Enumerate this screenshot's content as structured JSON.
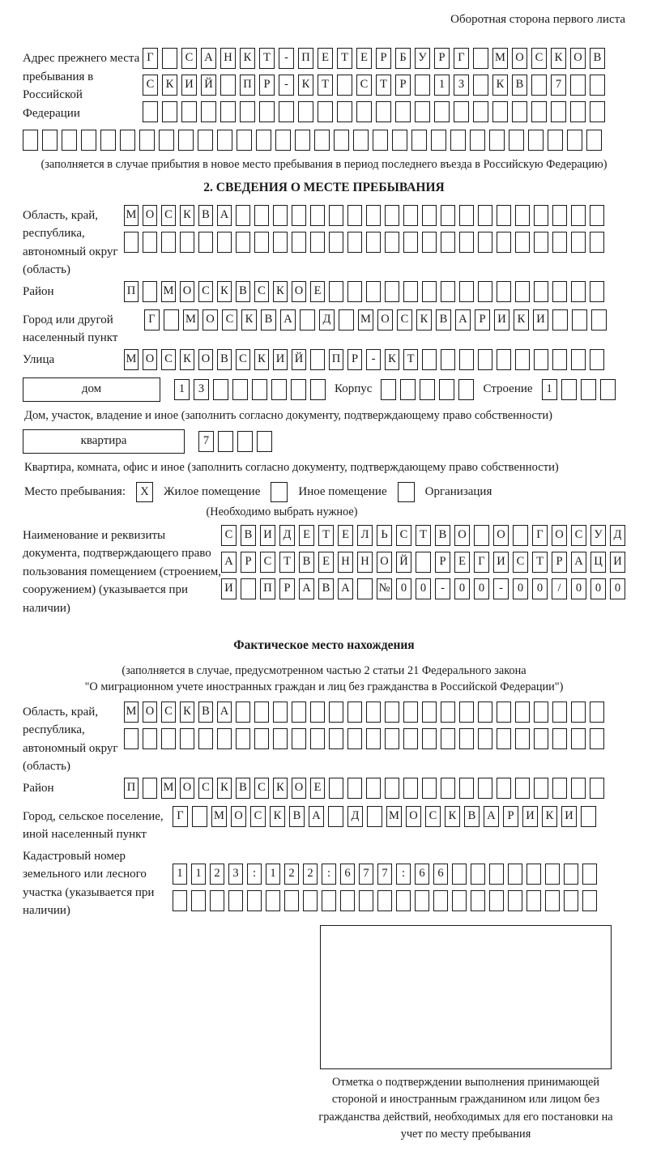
{
  "page": {
    "header_note": "Оборотная сторона первого листа"
  },
  "prev_address": {
    "label": "Адрес прежнего места пребывания в Российской Федерации",
    "rows": [
      [
        "Г",
        "",
        "С",
        "А",
        "Н",
        "К",
        "Т",
        "-",
        "П",
        "Е",
        "Т",
        "Е",
        "Р",
        "Б",
        "У",
        "Р",
        "Г",
        "",
        "М",
        "О",
        "С",
        "К",
        "О",
        "В"
      ],
      [
        "С",
        "К",
        "И",
        "Й",
        "",
        "П",
        "Р",
        "-",
        "К",
        "Т",
        "",
        "С",
        "Т",
        "Р",
        "",
        "1",
        "3",
        "",
        "К",
        "В",
        "",
        "7",
        "",
        ""
      ],
      [
        "",
        "",
        "",
        "",
        "",
        "",
        "",
        "",
        "",
        "",
        "",
        "",
        "",
        "",
        "",
        "",
        "",
        "",
        "",
        "",
        "",
        "",
        "",
        ""
      ]
    ],
    "full_row": [
      "",
      "",
      "",
      "",
      "",
      "",
      "",
      "",
      "",
      "",
      "",
      "",
      "",
      "",
      "",
      "",
      "",
      "",
      "",
      "",
      "",
      "",
      "",
      "",
      "",
      "",
      "",
      "",
      "",
      ""
    ],
    "note": "(заполняется в случае прибытия в новое место пребывания в период последнего въезда в Российскую Федерацию)"
  },
  "section2": {
    "title": "2. СВЕДЕНИЯ О МЕСТЕ ПРЕБЫВАНИЯ",
    "oblast": {
      "label": "Область, край, республика, автономный округ (область)",
      "rows": [
        [
          "М",
          "О",
          "С",
          "К",
          "В",
          "А",
          "",
          "",
          "",
          "",
          "",
          "",
          "",
          "",
          "",
          "",
          "",
          "",
          "",
          "",
          "",
          "",
          "",
          "",
          "",
          ""
        ],
        [
          "",
          "",
          "",
          "",
          "",
          "",
          "",
          "",
          "",
          "",
          "",
          "",
          "",
          "",
          "",
          "",
          "",
          "",
          "",
          "",
          "",
          "",
          "",
          "",
          "",
          ""
        ]
      ]
    },
    "raion": {
      "label": "Район",
      "row": [
        "П",
        "",
        "М",
        "О",
        "С",
        "К",
        "В",
        "С",
        "К",
        "О",
        "Е",
        "",
        "",
        "",
        "",
        "",
        "",
        "",
        "",
        "",
        "",
        "",
        "",
        "",
        "",
        ""
      ]
    },
    "gorod": {
      "label": "Город или другой населенный пункт",
      "row": [
        "Г",
        "",
        "М",
        "О",
        "С",
        "К",
        "В",
        "А",
        "",
        "Д",
        "",
        "М",
        "О",
        "С",
        "К",
        "В",
        "А",
        "Р",
        "И",
        "К",
        "И",
        "",
        "",
        ""
      ]
    },
    "ulitsa": {
      "label": "Улица",
      "row": [
        "М",
        "О",
        "С",
        "К",
        "О",
        "В",
        "С",
        "К",
        "И",
        "Й",
        "",
        "П",
        "Р",
        "-",
        "К",
        "Т",
        "",
        "",
        "",
        "",
        "",
        "",
        "",
        "",
        "",
        ""
      ]
    },
    "dom": {
      "box_label": "дом",
      "cells": [
        "1",
        "3",
        "",
        "",
        "",
        "",
        "",
        ""
      ],
      "korpus_label": "Корпус",
      "korpus_cells": [
        "",
        "",
        "",
        "",
        ""
      ],
      "stroenie_label": "Строение",
      "stroenie_cells": [
        "1",
        "",
        "",
        ""
      ],
      "note": "Дом, участок, владение и иное (заполнить согласно документу, подтверждающему право собственности)"
    },
    "kvartira": {
      "box_label": "квартира",
      "cells": [
        "7",
        "",
        "",
        ""
      ],
      "note": "Квартира, комната, офис и иное (заполнить согласно документу, подтверждающему право собственности)"
    },
    "mesto": {
      "label": "Место пребывания:",
      "options": [
        {
          "label": "Жилое помещение",
          "mark": "X"
        },
        {
          "label": "Иное помещение",
          "mark": ""
        },
        {
          "label": "Организация",
          "mark": ""
        }
      ],
      "note": "(Необходимо выбрать нужное)"
    },
    "document": {
      "label": "Наименование и реквизиты документа, подтверждающего право пользования помещением (строением, сооружением) (указывается при наличии)",
      "rows": [
        [
          "С",
          "В",
          "И",
          "Д",
          "Е",
          "Т",
          "Е",
          "Л",
          "Ь",
          "С",
          "Т",
          "В",
          "О",
          "",
          "О",
          "",
          "Г",
          "О",
          "С",
          "У",
          "Д"
        ],
        [
          "А",
          "Р",
          "С",
          "Т",
          "В",
          "Е",
          "Н",
          "Н",
          "О",
          "Й",
          "",
          "Р",
          "Е",
          "Г",
          "И",
          "С",
          "Т",
          "Р",
          "А",
          "Ц",
          "И"
        ],
        [
          "И",
          "",
          "П",
          "Р",
          "А",
          "В",
          "А",
          "",
          "№",
          "0",
          "0",
          "-",
          "0",
          "0",
          "-",
          "0",
          "0",
          "/",
          "0",
          "0",
          "0"
        ]
      ]
    }
  },
  "actual_location": {
    "title": "Фактическое место нахождения",
    "note_line1": "(заполняется в случае, предусмотренном частью 2 статьи 21 Федерального закона",
    "note_line2": "\"О миграционном учете иностранных граждан и лиц без гражданства в Российской Федерации\")",
    "oblast": {
      "label": "Область, край, республика, автономный округ (область)",
      "rows": [
        [
          "М",
          "О",
          "С",
          "К",
          "В",
          "А",
          "",
          "",
          "",
          "",
          "",
          "",
          "",
          "",
          "",
          "",
          "",
          "",
          "",
          "",
          "",
          "",
          "",
          "",
          "",
          ""
        ],
        [
          "",
          "",
          "",
          "",
          "",
          "",
          "",
          "",
          "",
          "",
          "",
          "",
          "",
          "",
          "",
          "",
          "",
          "",
          "",
          "",
          "",
          "",
          "",
          "",
          "",
          ""
        ]
      ]
    },
    "raion": {
      "label": "Район",
      "row": [
        "П",
        "",
        "М",
        "О",
        "С",
        "К",
        "В",
        "С",
        "К",
        "О",
        "Е",
        "",
        "",
        "",
        "",
        "",
        "",
        "",
        "",
        "",
        "",
        "",
        "",
        "",
        "",
        ""
      ]
    },
    "gorod": {
      "label": "Город, сельское поселение, иной населенный пункт",
      "row": [
        "Г",
        "",
        "М",
        "О",
        "С",
        "К",
        "В",
        "А",
        "",
        "Д",
        "",
        "М",
        "О",
        "С",
        "К",
        "В",
        "А",
        "Р",
        "И",
        "К",
        "И",
        ""
      ]
    },
    "kadastr": {
      "label": "Кадастровый номер земельного или лесного участка (указывается при наличии)",
      "rows": [
        [
          "1",
          "1",
          "2",
          "3",
          ":",
          "1",
          "2",
          "2",
          ":",
          "6",
          "7",
          "7",
          ":",
          "6",
          "6",
          "",
          "",
          "",
          "",
          "",
          "",
          "",
          ""
        ],
        [
          "",
          "",
          "",
          "",
          "",
          "",
          "",
          "",
          "",
          "",
          "",
          "",
          "",
          "",
          "",
          "",
          "",
          "",
          "",
          "",
          "",
          "",
          ""
        ]
      ]
    },
    "stamp_caption": "Отметка о подтверждении выполнения принимающей стороной и иностранным гражданином или лицом без гражданства действий, необходимых для его постановки на учет по месту пребывания"
  }
}
